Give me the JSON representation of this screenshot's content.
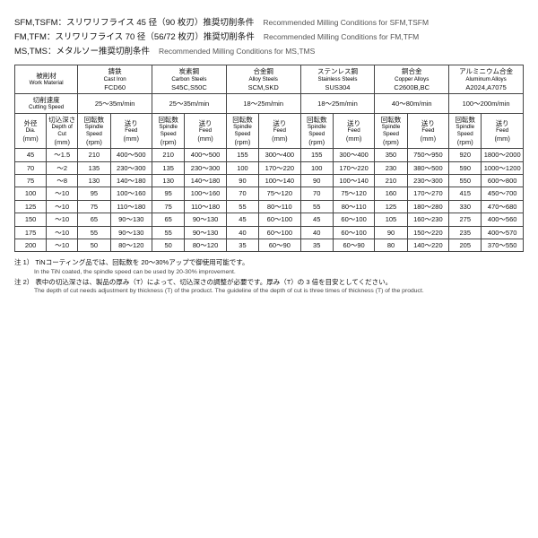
{
  "titles": [
    {
      "jp": "SFM,TSFM：スリワリフライス 45 径（90 枚刃）推奨切削条件",
      "en": "Recommended Milling Conditions for SFM,TSFM"
    },
    {
      "jp": "FM,TFM：スリワリフライス 70 径（56/72 枚刃）推奨切削条件",
      "en": "Recommended Milling Conditions for FM,TFM"
    },
    {
      "jp": "MS,TMS：メタルソー推奨切削条件",
      "en": "Recommended Milling Conditions for MS,TMS"
    }
  ],
  "header": {
    "work_material": {
      "jp": "被削材",
      "en": "Work Material"
    },
    "cutting_speed": {
      "jp": "切削速度",
      "en": "Cutting Speed"
    },
    "dia": {
      "jp": "外径",
      "en": "Dia.",
      "unit": "(mm)"
    },
    "doc": {
      "jp": "切込深さ",
      "en": "Depth of Cut",
      "unit": "(mm)"
    },
    "rpm": {
      "jp": "回転数",
      "en": "Spindle Speed",
      "unit": "(rpm)"
    },
    "feed": {
      "jp": "送り",
      "en": "Feed",
      "unit": "(mm)"
    }
  },
  "materials": [
    {
      "jp": "鋳鉄",
      "en": "Cast Iron",
      "grade": "FCD60",
      "speed": "25～35m/min"
    },
    {
      "jp": "炭素鋼",
      "en": "Carbon Steels",
      "grade": "S45C,S50C",
      "speed": "25～35m/min"
    },
    {
      "jp": "合金鋼",
      "en": "Alloy Steels",
      "grade": "SCM,SKD",
      "speed": "18～25m/min"
    },
    {
      "jp": "ステンレス鋼",
      "en": "Stainless Steels",
      "grade": "SUS304",
      "speed": "18～25m/min"
    },
    {
      "jp": "銅合金",
      "en": "Copper Alloys",
      "grade": "C2600B,BC",
      "speed": "40～80m/min"
    },
    {
      "jp": "アルミニウム合金",
      "en": "Aluminum Alloys",
      "grade": "A2024,A7075",
      "speed": "100～200m/min"
    }
  ],
  "rows": [
    {
      "dia": "45",
      "doc": "～1.5",
      "v": [
        [
          "210",
          "400～500"
        ],
        [
          "210",
          "400～500"
        ],
        [
          "155",
          "300～400"
        ],
        [
          "155",
          "300～400"
        ],
        [
          "350",
          "750～950"
        ],
        [
          "920",
          "1800～2000"
        ]
      ]
    },
    {
      "dia": "70",
      "doc": "～2",
      "v": [
        [
          "135",
          "230～300"
        ],
        [
          "135",
          "230～300"
        ],
        [
          "100",
          "170～220"
        ],
        [
          "100",
          "170～220"
        ],
        [
          "230",
          "380～500"
        ],
        [
          "590",
          "1000～1200"
        ]
      ]
    },
    {
      "dia": "75",
      "doc": "～8",
      "v": [
        [
          "130",
          "140～180"
        ],
        [
          "130",
          "140～180"
        ],
        [
          "90",
          "100～140"
        ],
        [
          "90",
          "100～140"
        ],
        [
          "210",
          "230～300"
        ],
        [
          "550",
          "600～800"
        ]
      ]
    },
    {
      "dia": "100",
      "doc": "～10",
      "v": [
        [
          "95",
          "100～160"
        ],
        [
          "95",
          "100～160"
        ],
        [
          "70",
          "75～120"
        ],
        [
          "70",
          "75～120"
        ],
        [
          "160",
          "170～270"
        ],
        [
          "415",
          "450～700"
        ]
      ]
    },
    {
      "dia": "125",
      "doc": "～10",
      "v": [
        [
          "75",
          "110～180"
        ],
        [
          "75",
          "110～180"
        ],
        [
          "55",
          "80～110"
        ],
        [
          "55",
          "80～110"
        ],
        [
          "125",
          "180～280"
        ],
        [
          "330",
          "470～680"
        ]
      ]
    },
    {
      "dia": "150",
      "doc": "～10",
      "v": [
        [
          "65",
          "90～130"
        ],
        [
          "65",
          "90～130"
        ],
        [
          "45",
          "60～100"
        ],
        [
          "45",
          "60～100"
        ],
        [
          "105",
          "160～230"
        ],
        [
          "275",
          "400～560"
        ]
      ]
    },
    {
      "dia": "175",
      "doc": "～10",
      "v": [
        [
          "55",
          "90～130"
        ],
        [
          "55",
          "90～130"
        ],
        [
          "40",
          "60～100"
        ],
        [
          "40",
          "60～100"
        ],
        [
          "90",
          "150～220"
        ],
        [
          "235",
          "400～570"
        ]
      ]
    },
    {
      "dia": "200",
      "doc": "～10",
      "v": [
        [
          "50",
          "80～120"
        ],
        [
          "50",
          "80～120"
        ],
        [
          "35",
          "60～90"
        ],
        [
          "35",
          "60～90"
        ],
        [
          "80",
          "140～220"
        ],
        [
          "205",
          "370～550"
        ]
      ]
    }
  ],
  "notes": [
    {
      "jp": "注 1） TiNコーティング品では、回転数を 20～30%アップで御使用可能です。",
      "en": "In the TiN coated, the spindle speed can be used by 20-30% improvement."
    },
    {
      "jp": "注 2） 表中の切込深さは、製品の厚み（T）によって、切込深さの調整が必要です。厚み（T）の 3 倍を目安としてください。",
      "en": "The depth of cut needs adjustment by thickness (T) of the product. The guideline of the depth of cut is three times of thickness (T) of the product."
    }
  ]
}
